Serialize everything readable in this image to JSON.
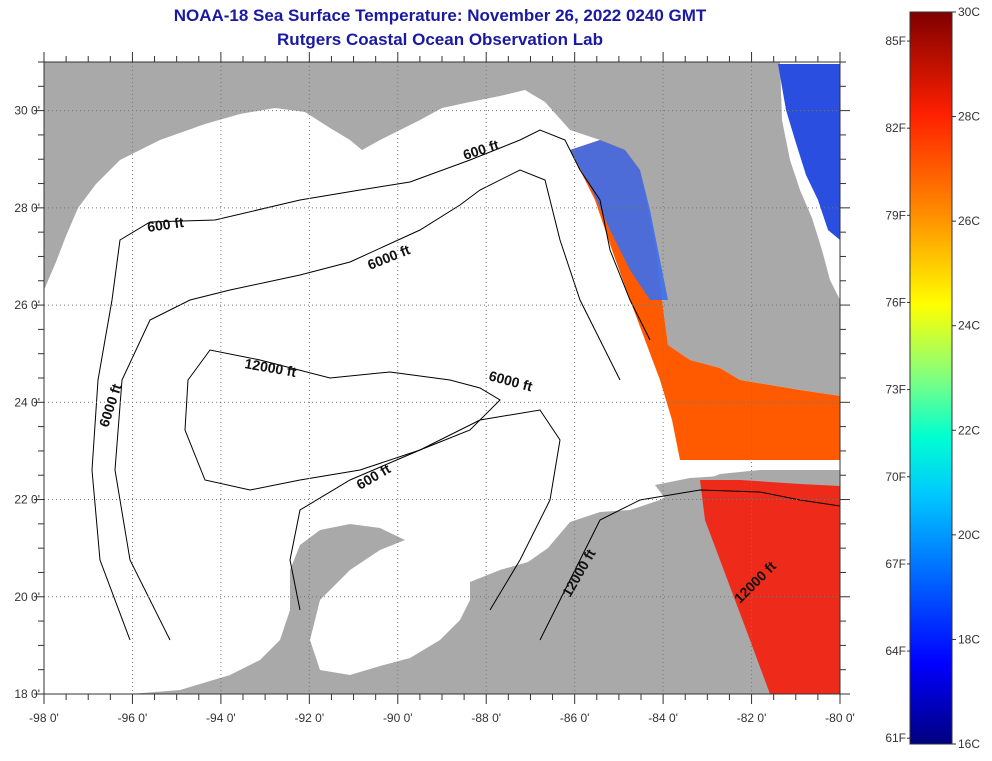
{
  "title": {
    "line1": "NOAA-18 Sea Surface Temperature:  November 26, 2022 0240 GMT",
    "line2": "Rutgers Coastal Ocean Observation Lab"
  },
  "map": {
    "lon_range": [
      -98,
      -80
    ],
    "lat_range": [
      18,
      31
    ],
    "lon_labels": [
      "-98 0'",
      "-96 0'",
      "-94 0'",
      "-92 0'",
      "-90 0'",
      "-88 0'",
      "-86 0'",
      "-84 0'",
      "-82 0'",
      "-80 0'"
    ],
    "lat_labels": [
      "18 0'",
      "20 0'",
      "22 0'",
      "24 0'",
      "26 0'",
      "28 0'",
      "30 0'"
    ],
    "contour_labels": {
      "c600_north": "600 ft",
      "c600_west": "600 ft",
      "c6000_north": "6000 ft",
      "c6000_west": "6000 ft",
      "c6000_east": "6000 ft",
      "c12000_center": "12000 ft",
      "c600_south": "600 ft",
      "c12000_cuba": "12000 ft",
      "c12000_southeast": "12000 ft"
    },
    "colors": {
      "land": "#a9a9a9",
      "ocean_no_data": "#ffffff",
      "contour": "#000000"
    }
  },
  "colorbar": {
    "celsius_labels": [
      "30C",
      "28C",
      "26C",
      "24C",
      "22C",
      "20C",
      "18C",
      "16C"
    ],
    "fahrenheit_labels": [
      "85F",
      "82F",
      "79F",
      "76F",
      "73F",
      "70F",
      "67F",
      "64F",
      "61F"
    ],
    "min_c": 16,
    "max_c": 30,
    "colors": [
      "#00007f",
      "#0000ff",
      "#007fff",
      "#00ffff",
      "#7fff7f",
      "#ffff00",
      "#ff7f00",
      "#ff0000",
      "#7f0000"
    ]
  }
}
